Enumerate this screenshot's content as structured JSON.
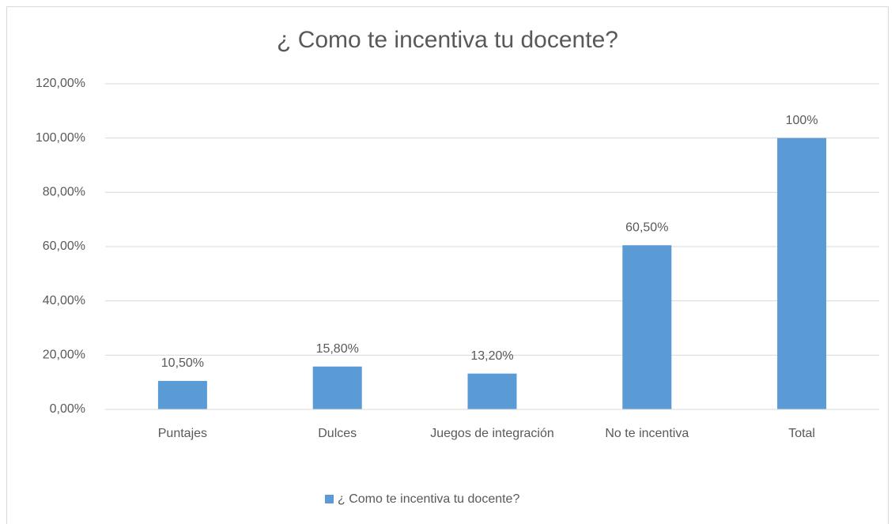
{
  "chart_data": {
    "type": "bar",
    "title": "¿ Como te incentiva tu docente?",
    "categories": [
      "Puntajes",
      "Dulces",
      "Juegos de integración",
      "No te incentiva",
      "Total"
    ],
    "series": [
      {
        "name": "¿ Como te incentiva tu docente?",
        "color": "#5b9bd5",
        "values": [
          10.5,
          15.8,
          13.2,
          60.5,
          100
        ],
        "value_labels": [
          "10,50%",
          "15,80%",
          "13,20%",
          "60,50%",
          "100%"
        ]
      }
    ],
    "ylim": [
      0,
      120
    ],
    "yticks": [
      {
        "value": 0,
        "label": "0,00%"
      },
      {
        "value": 20,
        "label": "20,00%"
      },
      {
        "value": 40,
        "label": "40,00%"
      },
      {
        "value": 60,
        "label": "60,00%"
      },
      {
        "value": 80,
        "label": "80,00%"
      },
      {
        "value": 100,
        "label": "100,00%"
      },
      {
        "value": 120,
        "label": "120,00%"
      }
    ],
    "grid": true,
    "legend": "bottom"
  }
}
